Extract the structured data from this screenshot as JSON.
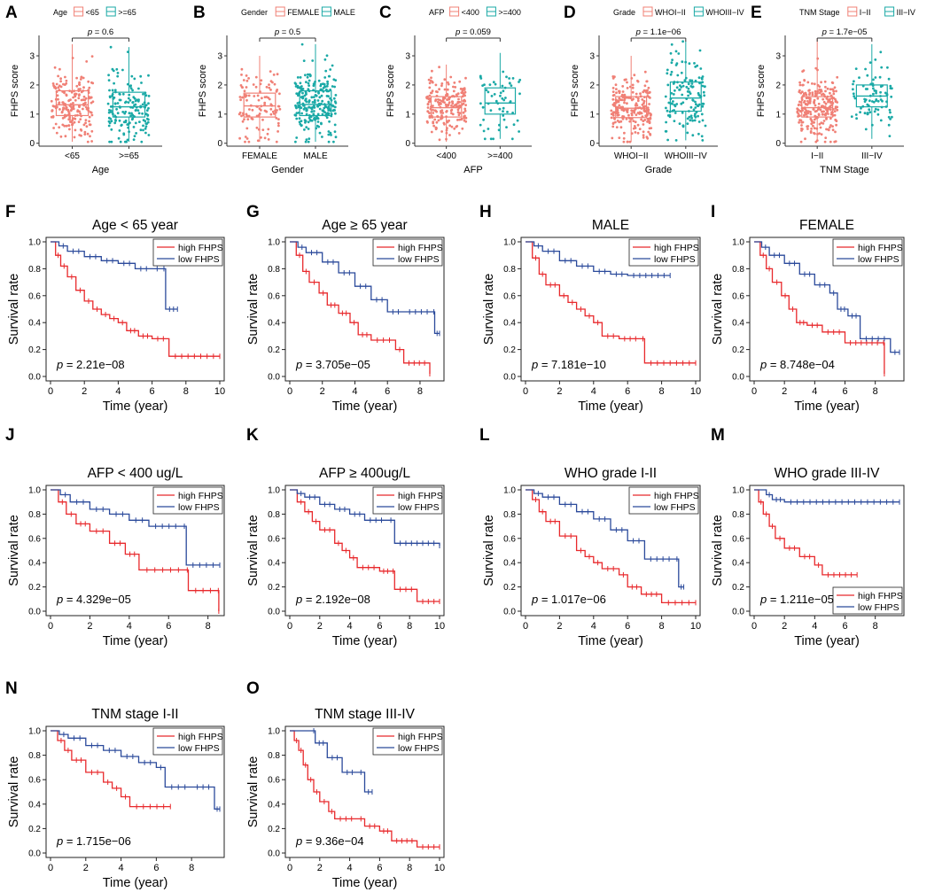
{
  "colors": {
    "high": "#e8292c",
    "low": "#2b4a9b",
    "box_a": "#f08076",
    "box_b": "#1aa9a6"
  },
  "chart_data": [
    {
      "type": "box",
      "label": "A",
      "legend_title": "Age",
      "groups": [
        "<65",
        ">=65"
      ],
      "xlabel": "Age",
      "ylabel": "FHPS score",
      "yticks": [
        0,
        1,
        2,
        3
      ],
      "ylim": [
        -0.1,
        3.7
      ],
      "p_text": "p = 0.6",
      "q1": [
        0.95,
        0.9
      ],
      "median": [
        1.32,
        1.25
      ],
      "q3": [
        1.8,
        1.75
      ],
      "wlo": [
        0.05,
        0.05
      ],
      "whi": [
        3.4,
        3.3
      ],
      "n": [
        200,
        160
      ]
    },
    {
      "type": "box",
      "label": "B",
      "legend_title": "Gender",
      "groups": [
        "FEMALE",
        "MALE"
      ],
      "xlabel": "Gender",
      "ylabel": "FHPS score",
      "yticks": [
        0,
        1,
        2,
        3
      ],
      "ylim": [
        -0.1,
        3.7
      ],
      "p_text": "p = 0.5",
      "q1": [
        0.9,
        0.95
      ],
      "median": [
        1.28,
        1.33
      ],
      "q3": [
        1.72,
        1.8
      ],
      "wlo": [
        0.05,
        0.05
      ],
      "whi": [
        3.0,
        3.4
      ],
      "n": [
        110,
        240
      ]
    },
    {
      "type": "box",
      "label": "C",
      "legend_title": "AFP",
      "groups": [
        "<400",
        ">=400"
      ],
      "xlabel": "AFP",
      "ylabel": "FHPS score",
      "yticks": [
        0,
        1,
        2,
        3
      ],
      "ylim": [
        -0.1,
        3.7
      ],
      "p_text": "p = 0.059",
      "q1": [
        0.9,
        1.0
      ],
      "median": [
        1.22,
        1.38
      ],
      "q3": [
        1.6,
        1.9
      ],
      "wlo": [
        0.05,
        0.15
      ],
      "whi": [
        2.7,
        3.1
      ],
      "n": [
        200,
        60
      ]
    },
    {
      "type": "box",
      "label": "D",
      "legend_title": "Grade",
      "groups": [
        "WHOI−II",
        "WHOIII−IV"
      ],
      "xlabel": "Grade",
      "ylabel": "FHPS score",
      "yticks": [
        0,
        1,
        2,
        3
      ],
      "ylim": [
        -0.1,
        3.7
      ],
      "p_text": "p = 1.1e−06",
      "q1": [
        0.88,
        1.1
      ],
      "median": [
        1.2,
        1.55
      ],
      "q3": [
        1.6,
        2.1
      ],
      "wlo": [
        0.05,
        0.1
      ],
      "whi": [
        3.0,
        3.5
      ],
      "n": [
        230,
        140
      ]
    },
    {
      "type": "box",
      "label": "E",
      "legend_title": "TNM Stage",
      "groups": [
        "I−II",
        "III−IV"
      ],
      "xlabel": "TNM Stage",
      "ylabel": "FHPS score",
      "yticks": [
        0,
        1,
        2,
        3
      ],
      "ylim": [
        -0.1,
        3.7
      ],
      "p_text": "p = 1.7e−05",
      "q1": [
        0.9,
        1.25
      ],
      "median": [
        1.22,
        1.62
      ],
      "q3": [
        1.6,
        2.0
      ],
      "wlo": [
        0.05,
        0.15
      ],
      "whi": [
        3.6,
        3.4
      ],
      "n": [
        250,
        85
      ]
    },
    {
      "type": "km",
      "label": "F",
      "title": "Age < 65 year",
      "p_text": "p = 2.21e−08",
      "xticks": [
        0,
        2,
        4,
        6,
        8,
        10
      ],
      "xmax": 10,
      "xlabel": "Time (year)",
      "ylabel": "Survival rate",
      "legend": [
        "high FHPS",
        "low FHPS"
      ],
      "legend_pos": "top-right",
      "high": [
        [
          0,
          1
        ],
        [
          0.3,
          0.9
        ],
        [
          0.6,
          0.82
        ],
        [
          1,
          0.74
        ],
        [
          1.5,
          0.64
        ],
        [
          2,
          0.56
        ],
        [
          2.5,
          0.5
        ],
        [
          3,
          0.46
        ],
        [
          3.5,
          0.43
        ],
        [
          4,
          0.4
        ],
        [
          4.5,
          0.34
        ],
        [
          5.2,
          0.3
        ],
        [
          6,
          0.28
        ],
        [
          7,
          0.15
        ],
        [
          10,
          0.15
        ]
      ],
      "low": [
        [
          0,
          1
        ],
        [
          0.5,
          0.97
        ],
        [
          1,
          0.93
        ],
        [
          2,
          0.89
        ],
        [
          3,
          0.86
        ],
        [
          4,
          0.84
        ],
        [
          5,
          0.8
        ],
        [
          6,
          0.8
        ],
        [
          6.6,
          0.8
        ],
        [
          6.8,
          0.5
        ],
        [
          7.5,
          0.5
        ]
      ]
    },
    {
      "type": "km",
      "label": "G",
      "title": "Age ≥ 65 year",
      "p_text": "p = 3.705e−05",
      "xticks": [
        0,
        2,
        4,
        6,
        8
      ],
      "xmax": 9.2,
      "xlabel": "Time (year)",
      "ylabel": "Survival rate",
      "legend": [
        "high FHPS",
        "low FHPS"
      ],
      "legend_pos": "top-right",
      "high": [
        [
          0,
          1
        ],
        [
          0.4,
          0.9
        ],
        [
          0.8,
          0.78
        ],
        [
          1.2,
          0.7
        ],
        [
          1.8,
          0.62
        ],
        [
          2.3,
          0.53
        ],
        [
          3,
          0.47
        ],
        [
          3.7,
          0.4
        ],
        [
          4.2,
          0.31
        ],
        [
          5,
          0.27
        ],
        [
          6.5,
          0.2
        ],
        [
          7,
          0.1
        ],
        [
          8.6,
          0.02
        ]
      ],
      "low": [
        [
          0,
          1
        ],
        [
          0.5,
          0.96
        ],
        [
          1,
          0.92
        ],
        [
          2,
          0.85
        ],
        [
          3,
          0.77
        ],
        [
          4,
          0.67
        ],
        [
          5,
          0.57
        ],
        [
          6,
          0.48
        ],
        [
          7,
          0.48
        ],
        [
          8.8,
          0.48
        ],
        [
          8.9,
          0.32
        ],
        [
          9.2,
          0.32
        ]
      ]
    },
    {
      "type": "km",
      "label": "H",
      "title": "MALE",
      "p_text": "p = 7.181e−10",
      "xticks": [
        0,
        2,
        4,
        6,
        8,
        10
      ],
      "xmax": 10,
      "xlabel": "Time (year)",
      "ylabel": "Survival rate",
      "legend": [
        "high FHPS",
        "low FHPS"
      ],
      "legend_pos": "top-right",
      "high": [
        [
          0,
          1
        ],
        [
          0.4,
          0.88
        ],
        [
          0.8,
          0.76
        ],
        [
          1.2,
          0.68
        ],
        [
          2,
          0.6
        ],
        [
          2.5,
          0.55
        ],
        [
          3,
          0.5
        ],
        [
          3.5,
          0.45
        ],
        [
          4,
          0.4
        ],
        [
          4.5,
          0.3
        ],
        [
          5.5,
          0.28
        ],
        [
          6.8,
          0.28
        ],
        [
          7,
          0.1
        ],
        [
          10,
          0.1
        ]
      ],
      "low": [
        [
          0,
          1
        ],
        [
          0.5,
          0.97
        ],
        [
          1,
          0.93
        ],
        [
          2,
          0.86
        ],
        [
          3,
          0.82
        ],
        [
          4,
          0.78
        ],
        [
          5,
          0.76
        ],
        [
          6,
          0.75
        ],
        [
          8.5,
          0.75
        ]
      ]
    },
    {
      "type": "km",
      "label": "I",
      "title": "FEMALE",
      "p_text": "p = 8.748e−04",
      "xticks": [
        0,
        2,
        4,
        6,
        8
      ],
      "xmax": 9.6,
      "xlabel": "Time (year)",
      "ylabel": "Survival rate",
      "legend": [
        "high FHPS",
        "low FHPS"
      ],
      "legend_pos": "top-right",
      "high": [
        [
          0,
          1
        ],
        [
          0.4,
          0.9
        ],
        [
          0.8,
          0.8
        ],
        [
          1.2,
          0.7
        ],
        [
          1.8,
          0.6
        ],
        [
          2.3,
          0.5
        ],
        [
          2.8,
          0.4
        ],
        [
          3.5,
          0.38
        ],
        [
          4.5,
          0.33
        ],
        [
          6,
          0.25
        ],
        [
          8.5,
          0.25
        ],
        [
          8.6,
          0.02
        ]
      ],
      "low": [
        [
          0,
          1
        ],
        [
          0.5,
          0.96
        ],
        [
          1,
          0.9
        ],
        [
          2,
          0.84
        ],
        [
          3,
          0.76
        ],
        [
          4,
          0.68
        ],
        [
          5,
          0.62
        ],
        [
          5.5,
          0.5
        ],
        [
          6.2,
          0.45
        ],
        [
          7,
          0.28
        ],
        [
          9,
          0.18
        ],
        [
          9.6,
          0.18
        ]
      ]
    },
    {
      "type": "km",
      "label": "J",
      "title": "AFP < 400 ug/L",
      "p_text": "p = 4.329e−05",
      "xticks": [
        0,
        2,
        4,
        6,
        8
      ],
      "xmax": 8.6,
      "xlabel": "Time (year)",
      "ylabel": "Survival rate",
      "legend": [
        "high FHPS",
        "low FHPS"
      ],
      "legend_pos": "top-right",
      "high": [
        [
          0,
          1
        ],
        [
          0.4,
          0.9
        ],
        [
          0.8,
          0.8
        ],
        [
          1.3,
          0.72
        ],
        [
          2,
          0.66
        ],
        [
          3,
          0.56
        ],
        [
          3.8,
          0.47
        ],
        [
          4.5,
          0.34
        ],
        [
          6.9,
          0.34
        ],
        [
          7,
          0.17
        ],
        [
          8.5,
          0.17
        ],
        [
          8.55,
          0.0
        ]
      ],
      "low": [
        [
          0,
          1
        ],
        [
          0.5,
          0.96
        ],
        [
          1,
          0.9
        ],
        [
          2,
          0.84
        ],
        [
          3,
          0.8
        ],
        [
          4,
          0.75
        ],
        [
          5,
          0.7
        ],
        [
          6.7,
          0.7
        ],
        [
          6.9,
          0.38
        ],
        [
          8.6,
          0.38
        ]
      ]
    },
    {
      "type": "km",
      "label": "K",
      "title": "AFP ≥ 400ug/L",
      "p_text": "p = 2.192e−08",
      "xticks": [
        0,
        2,
        4,
        6,
        8,
        10
      ],
      "xmax": 10,
      "xlabel": "Time (year)",
      "ylabel": "Survival rate",
      "legend": [
        "high FHPS",
        "low FHPS"
      ],
      "legend_pos": "top-right",
      "high": [
        [
          0,
          1
        ],
        [
          0.5,
          0.9
        ],
        [
          1,
          0.82
        ],
        [
          1.5,
          0.74
        ],
        [
          2,
          0.67
        ],
        [
          3,
          0.56
        ],
        [
          3.5,
          0.5
        ],
        [
          4,
          0.44
        ],
        [
          4.5,
          0.36
        ],
        [
          6,
          0.33
        ],
        [
          6.8,
          0.33
        ],
        [
          7,
          0.18
        ],
        [
          8.5,
          0.08
        ],
        [
          10,
          0.08
        ]
      ],
      "low": [
        [
          0,
          1
        ],
        [
          0.5,
          0.97
        ],
        [
          1,
          0.94
        ],
        [
          2,
          0.88
        ],
        [
          3,
          0.84
        ],
        [
          4,
          0.8
        ],
        [
          5,
          0.75
        ],
        [
          6.5,
          0.75
        ],
        [
          7,
          0.56
        ],
        [
          10,
          0.54
        ]
      ]
    },
    {
      "type": "km",
      "label": "L",
      "title": "WHO grade I-II",
      "p_text": "p = 1.017e−06",
      "xticks": [
        0,
        2,
        4,
        6,
        8,
        10
      ],
      "xmax": 10,
      "xlabel": "Time (year)",
      "ylabel": "Survival rate",
      "legend": [
        "high FHPS",
        "low FHPS"
      ],
      "legend_pos": "top-right",
      "high": [
        [
          0,
          1
        ],
        [
          0.4,
          0.92
        ],
        [
          0.8,
          0.82
        ],
        [
          1.2,
          0.74
        ],
        [
          2,
          0.62
        ],
        [
          3,
          0.5
        ],
        [
          3.5,
          0.45
        ],
        [
          4,
          0.4
        ],
        [
          4.5,
          0.35
        ],
        [
          5.5,
          0.3
        ],
        [
          6,
          0.2
        ],
        [
          6.8,
          0.14
        ],
        [
          8,
          0.07
        ],
        [
          10,
          0.07
        ]
      ],
      "low": [
        [
          0,
          1
        ],
        [
          0.5,
          0.97
        ],
        [
          1,
          0.94
        ],
        [
          2,
          0.88
        ],
        [
          3,
          0.82
        ],
        [
          4,
          0.76
        ],
        [
          5,
          0.67
        ],
        [
          6,
          0.58
        ],
        [
          7,
          0.43
        ],
        [
          8.8,
          0.43
        ],
        [
          9,
          0.2
        ],
        [
          9.3,
          0.2
        ]
      ]
    },
    {
      "type": "km",
      "label": "M",
      "title": "WHO grade III-IV",
      "p_text": "p = 1.211e−05",
      "xticks": [
        0,
        2,
        4,
        6,
        8
      ],
      "xmax": 9.6,
      "xlabel": "Time (year)",
      "ylabel": "Survival rate",
      "legend": [
        "high FHPS",
        "low FHPS"
      ],
      "legend_pos": "bottom-right",
      "high": [
        [
          0,
          1
        ],
        [
          0.3,
          0.9
        ],
        [
          0.6,
          0.8
        ],
        [
          1,
          0.7
        ],
        [
          1.4,
          0.6
        ],
        [
          2,
          0.52
        ],
        [
          3,
          0.45
        ],
        [
          4,
          0.38
        ],
        [
          4.5,
          0.3
        ],
        [
          6.8,
          0.3
        ]
      ],
      "low": [
        [
          0,
          1
        ],
        [
          0.8,
          0.96
        ],
        [
          1.2,
          0.92
        ],
        [
          2,
          0.9
        ],
        [
          9.6,
          0.9
        ]
      ]
    },
    {
      "type": "km",
      "label": "N",
      "title": "TNM stage I-II",
      "p_text": "p = 1.715e−06",
      "xticks": [
        0,
        2,
        4,
        6,
        8
      ],
      "xmax": 9.6,
      "xlabel": "Time (year)",
      "ylabel": "Survival rate",
      "legend": [
        "high FHPS",
        "low FHPS"
      ],
      "legend_pos": "top-right",
      "high": [
        [
          0,
          1
        ],
        [
          0.4,
          0.92
        ],
        [
          0.8,
          0.84
        ],
        [
          1.2,
          0.76
        ],
        [
          2,
          0.66
        ],
        [
          3,
          0.58
        ],
        [
          3.5,
          0.53
        ],
        [
          4,
          0.46
        ],
        [
          4.5,
          0.38
        ],
        [
          6.8,
          0.38
        ]
      ],
      "low": [
        [
          0,
          1
        ],
        [
          0.5,
          0.97
        ],
        [
          1,
          0.94
        ],
        [
          2,
          0.88
        ],
        [
          3,
          0.84
        ],
        [
          4,
          0.79
        ],
        [
          5,
          0.74
        ],
        [
          6,
          0.7
        ],
        [
          6.5,
          0.54
        ],
        [
          8,
          0.54
        ],
        [
          9.3,
          0.36
        ],
        [
          9.6,
          0.36
        ]
      ]
    },
    {
      "type": "km",
      "label": "O",
      "title": "TNM stage III-IV",
      "p_text": "p = 9.36e−04",
      "xticks": [
        0,
        2,
        4,
        6,
        8,
        10
      ],
      "xmax": 10,
      "xlabel": "Time (year)",
      "ylabel": "Survival rate",
      "legend": [
        "high FHPS",
        "low FHPS"
      ],
      "legend_pos": "top-right",
      "high": [
        [
          0,
          1
        ],
        [
          0.3,
          0.92
        ],
        [
          0.6,
          0.84
        ],
        [
          0.9,
          0.72
        ],
        [
          1.2,
          0.6
        ],
        [
          1.6,
          0.5
        ],
        [
          2,
          0.42
        ],
        [
          2.6,
          0.34
        ],
        [
          3,
          0.28
        ],
        [
          4.5,
          0.28
        ],
        [
          5,
          0.22
        ],
        [
          6,
          0.18
        ],
        [
          6.8,
          0.1
        ],
        [
          8.5,
          0.05
        ],
        [
          10,
          0.05
        ]
      ],
      "low": [
        [
          0,
          1
        ],
        [
          1.5,
          1.0
        ],
        [
          1.7,
          0.9
        ],
        [
          2.5,
          0.78
        ],
        [
          3.5,
          0.66
        ],
        [
          4.5,
          0.66
        ],
        [
          5,
          0.5
        ],
        [
          5.5,
          0.5
        ]
      ]
    }
  ]
}
